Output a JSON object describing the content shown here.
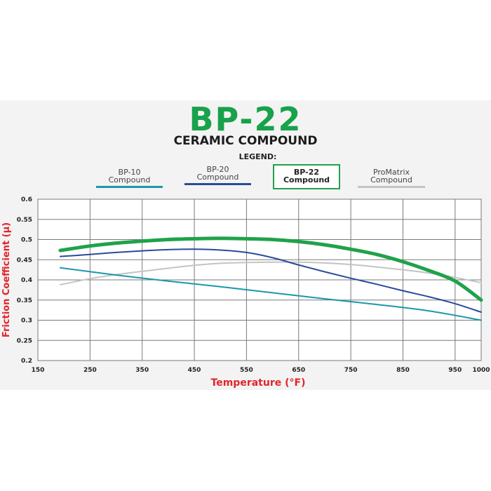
{
  "header": {
    "title": "BP-22",
    "subtitle": "CERAMIC COMPOUND",
    "legend_heading": "LEGEND:"
  },
  "colors": {
    "title_green": "#17a24b",
    "axis_label_red": "#e0252b",
    "bp10": "#1c97a9",
    "bp20": "#2a4b9b",
    "bp22": "#1fa24a",
    "promatrix": "#c4c4c4",
    "grid": "#7a7a7a"
  },
  "legend": [
    {
      "line1": "BP-10",
      "line2": "Compound",
      "color": "#1c97a9",
      "active": false
    },
    {
      "line1": "BP-20",
      "line2": "Compound",
      "color": "#2a4b9b",
      "active": false
    },
    {
      "line1": "BP-22",
      "line2": "Compound",
      "color": "#1fa24a",
      "active": true
    },
    {
      "line1": "ProMatrix",
      "line2": "Compound",
      "color": "#c4c4c4",
      "active": false
    }
  ],
  "chart_data": {
    "type": "line",
    "title": "BP-22",
    "subtitle": "CERAMIC COMPOUND",
    "xlabel": "Temperature (°F)",
    "ylabel": "Friction Coefficient (µ)",
    "xlim": [
      150,
      1000
    ],
    "ylim": [
      0.2,
      0.6
    ],
    "xticks": [
      150,
      250,
      350,
      450,
      550,
      650,
      750,
      850,
      950,
      1000
    ],
    "xtick_labels": [
      "150",
      "250",
      "350",
      "450",
      "550",
      "650",
      "750",
      "850",
      "950",
      "1000"
    ],
    "yticks": [
      0.2,
      0.25,
      0.3,
      0.35,
      0.4,
      0.45,
      0.5,
      0.55,
      0.6
    ],
    "ytick_labels": [
      "0.2",
      "0.25",
      "0.3",
      "0.35",
      "0.4",
      "0.45",
      "0.5",
      "0.55",
      "0.6"
    ],
    "grid": true,
    "legend_position": "top",
    "series": [
      {
        "name": "BP-10 Compound",
        "color": "#1c97a9",
        "width": 2,
        "x": [
          193,
          300,
          400,
          500,
          600,
          700,
          800,
          900,
          1000
        ],
        "y": [
          0.43,
          0.412,
          0.397,
          0.383,
          0.368,
          0.353,
          0.339,
          0.323,
          0.3
        ]
      },
      {
        "name": "BP-20 Compound",
        "color": "#2a4b9b",
        "width": 2,
        "x": [
          193,
          250,
          300,
          350,
          400,
          450,
          500,
          550,
          600,
          650,
          700,
          750,
          800,
          850,
          900,
          950,
          1000
        ],
        "y": [
          0.458,
          0.463,
          0.468,
          0.472,
          0.475,
          0.476,
          0.474,
          0.468,
          0.455,
          0.437,
          0.42,
          0.404,
          0.389,
          0.373,
          0.358,
          0.341,
          0.32
        ]
      },
      {
        "name": "BP-22 Compound",
        "color": "#1fa24a",
        "width": 5,
        "x": [
          193,
          250,
          300,
          350,
          400,
          450,
          500,
          550,
          600,
          650,
          700,
          750,
          800,
          850,
          900,
          950,
          1000
        ],
        "y": [
          0.473,
          0.484,
          0.491,
          0.496,
          0.5,
          0.502,
          0.503,
          0.502,
          0.5,
          0.495,
          0.487,
          0.476,
          0.463,
          0.445,
          0.423,
          0.397,
          0.35
        ]
      },
      {
        "name": "ProMatrix Compound",
        "color": "#c4c4c4",
        "width": 2,
        "x": [
          193,
          250,
          300,
          350,
          400,
          450,
          500,
          550,
          600,
          650,
          700,
          750,
          800,
          850,
          900,
          950,
          1000
        ],
        "y": [
          0.388,
          0.403,
          0.413,
          0.421,
          0.429,
          0.436,
          0.441,
          0.443,
          0.444,
          0.444,
          0.442,
          0.438,
          0.432,
          0.425,
          0.417,
          0.406,
          0.393
        ]
      }
    ]
  }
}
